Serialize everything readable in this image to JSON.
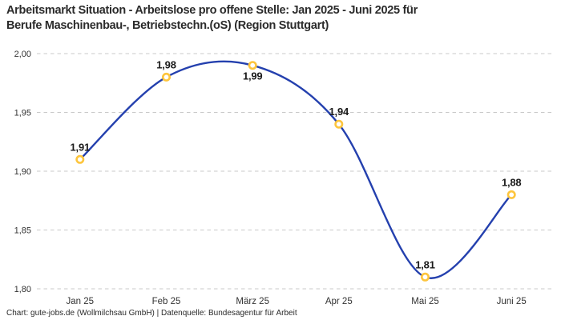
{
  "header": {
    "title": "Arbeitsmarkt Situation - Arbeitslose pro offene Stelle: Jan 2025 - Juni 2025 für\nBerufe Maschinenbau-, Betriebstechn.(oS) (Region Stuttgart)"
  },
  "footer": {
    "credit": "Chart: gute-jobs.de (Wollmilchsau GmbH) | Datenquelle: Bundesagentur für Arbeit"
  },
  "chart_data": {
    "type": "line",
    "title": "Arbeitsmarkt Situation - Arbeitslose pro offene Stelle: Jan 2025 - Juni 2025 für Berufe Maschinenbau-, Betriebstechn.(oS) (Region Stuttgart)",
    "categories": [
      "Jan 25",
      "Feb 25",
      "März 25",
      "Apr 25",
      "Mai 25",
      "Juni 25"
    ],
    "values": [
      1.91,
      1.98,
      1.99,
      1.94,
      1.81,
      1.88
    ],
    "point_labels": [
      "1,91",
      "1,98",
      "1,99",
      "1,94",
      "1,81",
      "1,88"
    ],
    "label_positions": [
      "above",
      "above",
      "below",
      "above",
      "above",
      "above"
    ],
    "xlabel": "",
    "ylabel": "",
    "ylim": [
      1.8,
      2.0
    ],
    "y_ticks": {
      "values": [
        2.0,
        1.95,
        1.9,
        1.85,
        1.8
      ],
      "labels": [
        "2,00",
        "1,95",
        "1,90",
        "1,85",
        "1,80"
      ]
    },
    "grid": "horizontal-dashed",
    "legend_position": "none",
    "curve": "smooth-spline",
    "colors": {
      "line": "#2440ae",
      "marker": "#fdc53d",
      "marker_fill": "#ffffff",
      "grid": "#c9c9c9",
      "tick_text": "#333333",
      "label_text": "#1a1a1a",
      "title_text": "#2b2b2b",
      "background": "#ffffff"
    }
  }
}
